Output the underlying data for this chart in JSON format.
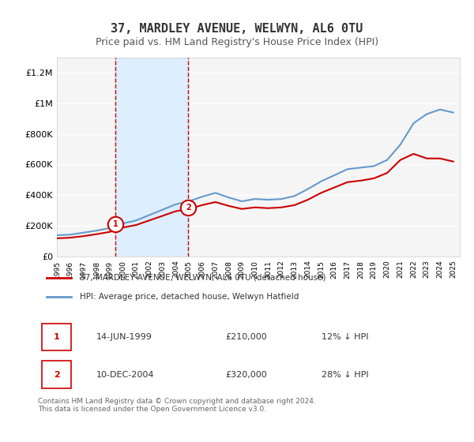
{
  "title": "37, MARDLEY AVENUE, WELWYN, AL6 0TU",
  "subtitle": "Price paid vs. HM Land Registry's House Price Index (HPI)",
  "title_fontsize": 11,
  "subtitle_fontsize": 9,
  "xlabel": "",
  "ylabel": "",
  "ylim": [
    0,
    1300000
  ],
  "xlim": [
    1995,
    2025.5
  ],
  "yticks": [
    0,
    200000,
    400000,
    600000,
    800000,
    1000000,
    1200000
  ],
  "ytick_labels": [
    "£0",
    "£200K",
    "£400K",
    "£600K",
    "£800K",
    "£1M",
    "£1.2M"
  ],
  "background_color": "#ffffff",
  "plot_bg_color": "#f5f5f5",
  "grid_color": "#ffffff",
  "red_line_color": "#cc0000",
  "blue_line_color": "#6699cc",
  "shade_color": "#ddeeff",
  "vline1_x": 1999.45,
  "vline2_x": 2004.94,
  "marker1_y": 210000,
  "marker2_y": 320000,
  "transaction1": {
    "label": "1",
    "date": "14-JUN-1999",
    "price": "£210,000",
    "hpi": "12% ↓ HPI"
  },
  "transaction2": {
    "label": "2",
    "date": "10-DEC-2004",
    "price": "£320,000",
    "hpi": "28% ↓ HPI"
  },
  "legend_line1": "37, MARDLEY AVENUE, WELWYN, AL6 0TU (detached house)",
  "legend_line2": "HPI: Average price, detached house, Welwyn Hatfield",
  "footer": "Contains HM Land Registry data © Crown copyright and database right 2024.\nThis data is licensed under the Open Government Licence v3.0.",
  "hpi_years": [
    1995,
    1996,
    1997,
    1998,
    1999,
    2000,
    2001,
    2002,
    2003,
    2004,
    2005,
    2006,
    2007,
    2008,
    2009,
    2010,
    2011,
    2012,
    2013,
    2014,
    2015,
    2016,
    2017,
    2018,
    2019,
    2020,
    2021,
    2022,
    2023,
    2024,
    2025
  ],
  "hpi_values": [
    138000,
    142000,
    155000,
    168000,
    185000,
    215000,
    235000,
    270000,
    305000,
    340000,
    360000,
    390000,
    415000,
    385000,
    360000,
    375000,
    370000,
    375000,
    395000,
    440000,
    490000,
    530000,
    570000,
    580000,
    590000,
    630000,
    730000,
    870000,
    930000,
    960000,
    940000
  ],
  "red_years": [
    1995,
    1996,
    1997,
    1998,
    1999,
    2000,
    2001,
    2002,
    2003,
    2004,
    2005,
    2006,
    2007,
    2008,
    2009,
    2010,
    2011,
    2012,
    2013,
    2014,
    2015,
    2016,
    2017,
    2018,
    2019,
    2020,
    2021,
    2022,
    2023,
    2024,
    2025
  ],
  "red_values": [
    118000,
    122000,
    132000,
    145000,
    160000,
    188000,
    205000,
    235000,
    265000,
    295000,
    310000,
    335000,
    355000,
    330000,
    310000,
    320000,
    315000,
    320000,
    335000,
    370000,
    415000,
    450000,
    485000,
    495000,
    510000,
    545000,
    630000,
    670000,
    640000,
    640000,
    620000
  ]
}
